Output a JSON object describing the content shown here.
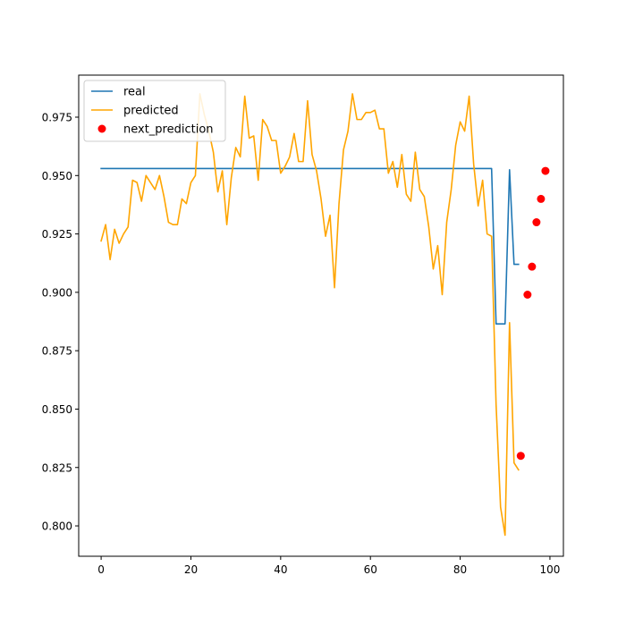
{
  "chart_data": {
    "type": "line",
    "title": "",
    "xlabel": "",
    "ylabel": "",
    "xlim": [
      -5,
      103
    ],
    "ylim": [
      0.787,
      0.993
    ],
    "xticks": [
      0,
      20,
      40,
      60,
      80,
      100
    ],
    "yticks": [
      0.8,
      0.825,
      0.85,
      0.875,
      0.9,
      0.925,
      0.95,
      0.975
    ],
    "xtick_labels": [
      "0",
      "20",
      "40",
      "60",
      "80",
      "100"
    ],
    "ytick_labels": [
      "0.800",
      "0.825",
      "0.850",
      "0.875",
      "0.900",
      "0.925",
      "0.950",
      "0.975"
    ],
    "grid": false,
    "legend_position": "top-left",
    "legend": [
      "real",
      "predicted",
      "next_prediction"
    ],
    "series": [
      {
        "name": "real",
        "kind": "line",
        "color": "#1f77b4",
        "points": [
          [
            0,
            0.953
          ],
          [
            87,
            0.953
          ],
          [
            88,
            0.8865
          ],
          [
            90,
            0.8865
          ],
          [
            91,
            0.9525
          ],
          [
            92,
            0.912
          ],
          [
            93,
            0.912
          ]
        ]
      },
      {
        "name": "predicted",
        "kind": "line",
        "color": "#ffa500",
        "points": [
          [
            0,
            0.922
          ],
          [
            1,
            0.929
          ],
          [
            2,
            0.914
          ],
          [
            3,
            0.927
          ],
          [
            4,
            0.921
          ],
          [
            5,
            0.925
          ],
          [
            6,
            0.928
          ],
          [
            7,
            0.948
          ],
          [
            8,
            0.947
          ],
          [
            9,
            0.939
          ],
          [
            10,
            0.95
          ],
          [
            11,
            0.947
          ],
          [
            12,
            0.944
          ],
          [
            13,
            0.95
          ],
          [
            14,
            0.941
          ],
          [
            15,
            0.93
          ],
          [
            16,
            0.929
          ],
          [
            17,
            0.929
          ],
          [
            18,
            0.94
          ],
          [
            19,
            0.938
          ],
          [
            20,
            0.947
          ],
          [
            21,
            0.95
          ],
          [
            22,
            0.985
          ],
          [
            23,
            0.976
          ],
          [
            24,
            0.969
          ],
          [
            25,
            0.96
          ],
          [
            26,
            0.943
          ],
          [
            27,
            0.952
          ],
          [
            28,
            0.929
          ],
          [
            29,
            0.949
          ],
          [
            30,
            0.962
          ],
          [
            31,
            0.958
          ],
          [
            32,
            0.984
          ],
          [
            33,
            0.966
          ],
          [
            34,
            0.967
          ],
          [
            35,
            0.948
          ],
          [
            36,
            0.974
          ],
          [
            37,
            0.971
          ],
          [
            38,
            0.965
          ],
          [
            39,
            0.965
          ],
          [
            40,
            0.951
          ],
          [
            41,
            0.954
          ],
          [
            42,
            0.958
          ],
          [
            43,
            0.968
          ],
          [
            44,
            0.956
          ],
          [
            45,
            0.956
          ],
          [
            46,
            0.982
          ],
          [
            47,
            0.959
          ],
          [
            48,
            0.952
          ],
          [
            49,
            0.94
          ],
          [
            50,
            0.924
          ],
          [
            51,
            0.933
          ],
          [
            52,
            0.902
          ],
          [
            53,
            0.938
          ],
          [
            54,
            0.961
          ],
          [
            55,
            0.969
          ],
          [
            56,
            0.985
          ],
          [
            57,
            0.974
          ],
          [
            58,
            0.974
          ],
          [
            59,
            0.977
          ],
          [
            60,
            0.977
          ],
          [
            61,
            0.978
          ],
          [
            62,
            0.97
          ],
          [
            63,
            0.97
          ],
          [
            64,
            0.951
          ],
          [
            65,
            0.956
          ],
          [
            66,
            0.945
          ],
          [
            67,
            0.959
          ],
          [
            68,
            0.942
          ],
          [
            69,
            0.939
          ],
          [
            70,
            0.96
          ],
          [
            71,
            0.944
          ],
          [
            72,
            0.941
          ],
          [
            73,
            0.928
          ],
          [
            74,
            0.91
          ],
          [
            75,
            0.92
          ],
          [
            76,
            0.899
          ],
          [
            77,
            0.93
          ],
          [
            78,
            0.944
          ],
          [
            79,
            0.963
          ],
          [
            80,
            0.973
          ],
          [
            81,
            0.969
          ],
          [
            82,
            0.984
          ],
          [
            83,
            0.955
          ],
          [
            84,
            0.937
          ],
          [
            85,
            0.948
          ],
          [
            86,
            0.925
          ],
          [
            87,
            0.924
          ],
          [
            88,
            0.852
          ],
          [
            89,
            0.808
          ],
          [
            90,
            0.796
          ],
          [
            91,
            0.887
          ],
          [
            92,
            0.827
          ],
          [
            93,
            0.824
          ]
        ]
      },
      {
        "name": "next_prediction",
        "kind": "scatter",
        "color": "#ff0000",
        "points": [
          [
            93.5,
            0.83
          ],
          [
            95,
            0.899
          ],
          [
            96,
            0.911
          ],
          [
            97,
            0.93
          ],
          [
            98,
            0.94
          ],
          [
            99,
            0.952
          ]
        ]
      }
    ]
  }
}
